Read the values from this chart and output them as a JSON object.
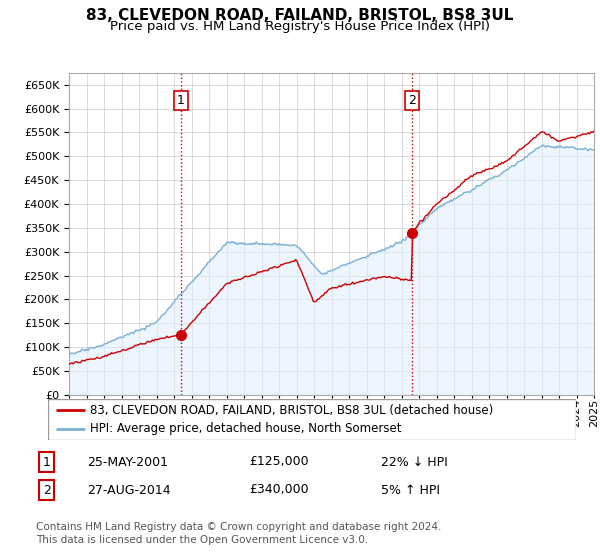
{
  "title": "83, CLEVEDON ROAD, FAILAND, BRISTOL, BS8 3UL",
  "subtitle": "Price paid vs. HM Land Registry's House Price Index (HPI)",
  "ytick_values": [
    0,
    50000,
    100000,
    150000,
    200000,
    250000,
    300000,
    350000,
    400000,
    450000,
    500000,
    550000,
    600000,
    650000
  ],
  "x_start_year": 1995,
  "x_end_year": 2025,
  "sale1_date": 2001.38,
  "sale1_price": 125000,
  "sale1_label": "1",
  "sale2_date": 2014.62,
  "sale2_price": 340000,
  "sale2_label": "2",
  "red_color": "#cc0000",
  "blue_color": "#7ab0d4",
  "blue_fill": "#ddeeff",
  "background_color": "#ffffff",
  "grid_color": "#cccccc",
  "legend_entry1": "83, CLEVEDON ROAD, FAILAND, BRISTOL, BS8 3UL (detached house)",
  "legend_entry2": "HPI: Average price, detached house, North Somerset",
  "table_row1": [
    "1",
    "25-MAY-2001",
    "£125,000",
    "22% ↓ HPI"
  ],
  "table_row2": [
    "2",
    "27-AUG-2014",
    "£340,000",
    "5% ↑ HPI"
  ],
  "footer": "Contains HM Land Registry data © Crown copyright and database right 2024.\nThis data is licensed under the Open Government Licence v3.0.",
  "title_fontsize": 11,
  "subtitle_fontsize": 9.5,
  "tick_fontsize": 8,
  "legend_fontsize": 8.5,
  "table_fontsize": 9,
  "footer_fontsize": 7.5
}
